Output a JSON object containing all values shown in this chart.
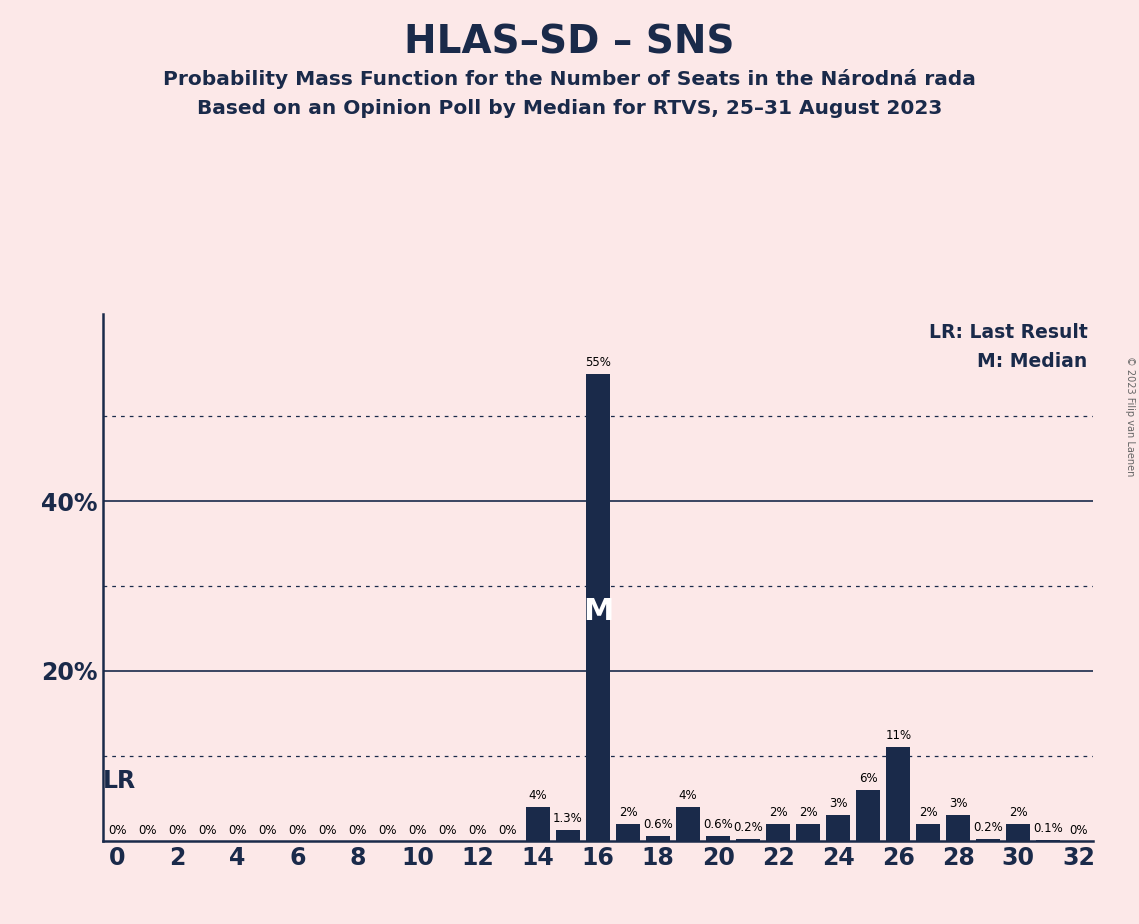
{
  "title": "HLAS–SD – SNS",
  "subtitle1": "Probability Mass Function for the Number of Seats in the Národná rada",
  "subtitle2": "Based on an Opinion Poll by Median for RTVS, 25–31 August 2023",
  "copyright": "© 2023 Filip van Laenen",
  "background_color": "#fce8e8",
  "bar_color": "#1a2a4a",
  "seats": [
    0,
    1,
    2,
    3,
    4,
    5,
    6,
    7,
    8,
    9,
    10,
    11,
    12,
    13,
    14,
    15,
    16,
    17,
    18,
    19,
    20,
    21,
    22,
    23,
    24,
    25,
    26,
    27,
    28,
    29,
    30,
    31,
    32
  ],
  "probabilities": [
    0.0,
    0.0,
    0.0,
    0.0,
    0.0,
    0.0,
    0.0,
    0.0,
    0.0,
    0.0,
    0.0,
    0.0,
    0.0,
    0.0,
    4.0,
    1.3,
    55.0,
    2.0,
    0.6,
    4.0,
    0.6,
    0.2,
    2.0,
    2.0,
    3.0,
    6.0,
    11.0,
    2.0,
    3.0,
    0.2,
    2.0,
    0.1,
    0.0
  ],
  "label_texts": [
    "0%",
    "0%",
    "0%",
    "0%",
    "0%",
    "0%",
    "0%",
    "0%",
    "0%",
    "0%",
    "0%",
    "0%",
    "0%",
    "0%",
    "4%",
    "1.3%",
    "55%",
    "2%",
    "0.6%",
    "4%",
    "0.6%",
    "0.2%",
    "2%",
    "2%",
    "3%",
    "6%",
    "11%",
    "2%",
    "3%",
    "0.2%",
    "2%",
    "0.1%",
    "0%"
  ],
  "solid_hlines": [
    20,
    40
  ],
  "dotted_hlines": [
    10,
    30,
    50
  ],
  "median_seat": 16,
  "legend_lr": "LR: Last Result",
  "legend_m": "M: Median",
  "xlim": [
    -0.5,
    32.5
  ],
  "ylim": [
    0,
    62
  ],
  "lr_label": "LR"
}
